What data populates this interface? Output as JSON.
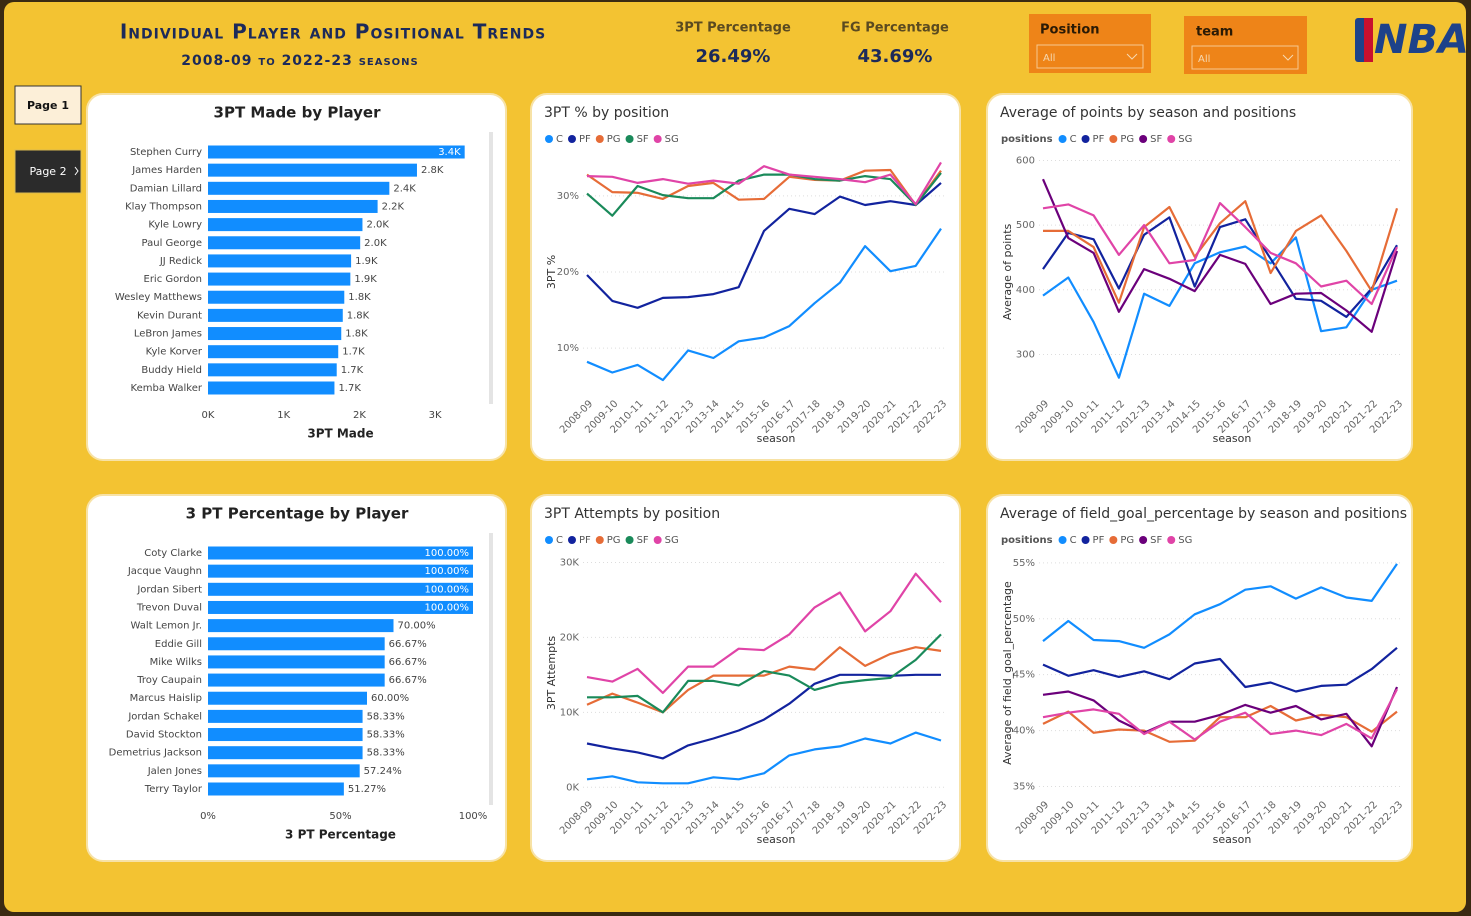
{
  "header": {
    "title": "Individual Player and Positional Trends",
    "subtitle": "2008-09 to 2022-23 seasons",
    "logo": "NBA"
  },
  "kpis": [
    {
      "label": "3PT Percentage",
      "value": "26.49%"
    },
    {
      "label": "FG Percentage",
      "value": "43.69%"
    }
  ],
  "slicers": [
    {
      "label": "Position",
      "value": "All"
    },
    {
      "label": "team",
      "value": "All"
    }
  ],
  "nav": [
    "Page 1",
    "Page 2"
  ],
  "chart_data": [
    {
      "type": "hbar",
      "title": "3PT Made by Player",
      "xlabel": "3PT Made",
      "categories": [
        "Stephen Curry",
        "James Harden",
        "Damian Lillard",
        "Klay Thompson",
        "Kyle Lowry",
        "Paul George",
        "JJ Redick",
        "Eric Gordon",
        "Wesley Matthews",
        "Kevin Durant",
        "LeBron James",
        "Kyle Korver",
        "Buddy Hield",
        "Kemba Walker"
      ],
      "values": [
        3390,
        2760,
        2395,
        2240,
        2040,
        2010,
        1890,
        1880,
        1800,
        1780,
        1760,
        1720,
        1700,
        1670
      ],
      "value_labels": [
        "3.4K",
        "2.8K",
        "2.4K",
        "2.2K",
        "2.0K",
        "2.0K",
        "1.9K",
        "1.9K",
        "1.8K",
        "1.8K",
        "1.8K",
        "1.7K",
        "1.7K",
        "1.7K"
      ],
      "color": "#118dff",
      "xlim": [
        0,
        3500
      ],
      "xticks": [
        {
          "value": 0,
          "label": "0K"
        },
        {
          "value": 1000,
          "label": "1K"
        },
        {
          "value": 2000,
          "label": "2K"
        },
        {
          "value": 3000,
          "label": "3K"
        }
      ]
    },
    {
      "type": "line",
      "title": "3PT % by position",
      "xlabel": "season",
      "ylabel": "3PT %",
      "categories": [
        "2008-09",
        "2009-10",
        "2010-11",
        "2011-12",
        "2012-13",
        "2013-14",
        "2014-15",
        "2015-16",
        "2016-17",
        "2017-18",
        "2018-19",
        "2019-20",
        "2020-21",
        "2021-22",
        "2022-23"
      ],
      "series": [
        {
          "name": "C",
          "color": "#118dff",
          "values": [
            8.2,
            6.8,
            7.8,
            5.8,
            9.7,
            8.7,
            10.9,
            11.4,
            12.9,
            15.9,
            18.6,
            23.4,
            20.1,
            20.8,
            25.7
          ]
        },
        {
          "name": "PF",
          "color": "#12239e",
          "values": [
            19.6,
            16.2,
            15.3,
            16.6,
            16.7,
            17.1,
            18.0,
            25.4,
            28.3,
            27.6,
            29.9,
            28.8,
            29.3,
            28.8,
            31.7
          ]
        },
        {
          "name": "PG",
          "color": "#e66c37",
          "values": [
            32.8,
            30.5,
            30.4,
            29.6,
            31.3,
            31.7,
            29.5,
            29.6,
            32.5,
            32.1,
            32.0,
            33.3,
            33.4,
            28.8,
            33.3
          ]
        },
        {
          "name": "SF",
          "color": "#1a8a5a",
          "values": [
            30.3,
            27.4,
            31.3,
            30.1,
            29.7,
            29.7,
            32.0,
            32.8,
            32.8,
            32.2,
            32.0,
            32.6,
            32.2,
            28.8,
            33.0
          ]
        },
        {
          "name": "SG",
          "color": "#e044a7",
          "values": [
            32.6,
            32.5,
            31.7,
            32.2,
            31.6,
            32.0,
            31.6,
            33.9,
            32.8,
            32.5,
            32.2,
            31.8,
            32.8,
            28.9,
            34.4
          ]
        }
      ],
      "ylim": [
        4.5,
        35.5
      ],
      "yticks": [
        {
          "value": 10,
          "label": "10%"
        },
        {
          "value": 20,
          "label": "20%"
        },
        {
          "value": 30,
          "label": "30%"
        }
      ],
      "grid": true
    },
    {
      "type": "line",
      "title": "Average of points by season and positions",
      "xlabel": "season",
      "ylabel": "Average of points",
      "legend_title": "positions",
      "categories": [
        "2008-09",
        "2009-10",
        "2010-11",
        "2011-12",
        "2012-13",
        "2013-14",
        "2014-15",
        "2015-16",
        "2016-17",
        "2017-18",
        "2018-19",
        "2019-20",
        "2020-21",
        "2021-22",
        "2022-23"
      ],
      "series": [
        {
          "name": "C",
          "color": "#118dff",
          "values": [
            391,
            419,
            350,
            264,
            394,
            375,
            441,
            458,
            467,
            441,
            481,
            336,
            342,
            400,
            414
          ]
        },
        {
          "name": "PF",
          "color": "#12239e",
          "values": [
            432,
            488,
            478,
            402,
            485,
            512,
            405,
            497,
            509,
            448,
            386,
            383,
            358,
            402,
            469
          ]
        },
        {
          "name": "PG",
          "color": "#e66c37",
          "values": [
            491,
            491,
            466,
            380,
            497,
            528,
            451,
            503,
            537,
            426,
            491,
            515,
            460,
            398,
            526
          ]
        },
        {
          "name": "SF",
          "color": "#6b007b",
          "values": [
            571,
            480,
            457,
            366,
            432,
            417,
            398,
            454,
            440,
            378,
            394,
            395,
            368,
            335,
            460
          ]
        },
        {
          "name": "SG",
          "color": "#e044a7",
          "values": [
            526,
            532,
            515,
            454,
            500,
            441,
            446,
            534,
            497,
            457,
            441,
            405,
            414,
            378,
            466
          ]
        }
      ],
      "ylim": [
        245,
        610
      ],
      "yticks": [
        300,
        400,
        500,
        600
      ],
      "grid": true
    },
    {
      "type": "hbar",
      "title": "3 PT Percentage by Player",
      "xlabel": "3 PT Percentage",
      "categories": [
        "Coty Clarke",
        "Jacque Vaughn",
        "Jordan Sibert",
        "Trevon Duval",
        "Walt Lemon Jr.",
        "Eddie Gill",
        "Mike Wilks",
        "Troy Caupain",
        "Marcus Haislip",
        "Jordan Schakel",
        "David Stockton",
        "Demetrius Jackson",
        "Jalen Jones",
        "Terry Taylor"
      ],
      "values": [
        100,
        100,
        100,
        100,
        70,
        66.67,
        66.67,
        66.67,
        60,
        58.33,
        58.33,
        58.33,
        57.24,
        51.27
      ],
      "value_labels": [
        "100.00%",
        "100.00%",
        "100.00%",
        "100.00%",
        "70.00%",
        "66.67%",
        "66.67%",
        "66.67%",
        "60.00%",
        "58.33%",
        "58.33%",
        "58.33%",
        "57.24%",
        "51.27%"
      ],
      "color": "#118dff",
      "xlim": [
        0,
        100
      ],
      "xticks": [
        {
          "value": 0,
          "label": "0%"
        },
        {
          "value": 50,
          "label": "50%"
        },
        {
          "value": 100,
          "label": "100%"
        }
      ]
    },
    {
      "type": "line",
      "title": "3PT Attempts by position",
      "xlabel": "season",
      "ylabel": "3PT Attempts",
      "categories": [
        "2008-09",
        "2009-10",
        "2010-11",
        "2011-12",
        "2012-13",
        "2013-14",
        "2014-15",
        "2015-16",
        "2016-17",
        "2017-18",
        "2018-19",
        "2019-20",
        "2020-21",
        "2021-22",
        "2022-23"
      ],
      "series": [
        {
          "name": "C",
          "color": "#118dff",
          "values": [
            1060,
            1460,
            660,
            530,
            530,
            1330,
            1060,
            1860,
            4250,
            5050,
            5450,
            6510,
            5840,
            7300,
            6240
          ]
        },
        {
          "name": "PF",
          "color": "#12239e",
          "values": [
            5840,
            5180,
            4650,
            3850,
            5580,
            6510,
            7570,
            9030,
            11150,
            13810,
            15010,
            15010,
            14870,
            15010,
            15010
          ]
        },
        {
          "name": "PG",
          "color": "#e66c37",
          "values": [
            11000,
            12500,
            11300,
            10000,
            13000,
            14900,
            14900,
            14900,
            16100,
            15700,
            18700,
            16200,
            17800,
            18700,
            18200
          ]
        },
        {
          "name": "SF",
          "color": "#1a8a5a",
          "values": [
            12000,
            12000,
            12200,
            10000,
            14200,
            14200,
            13600,
            15500,
            14900,
            13000,
            13900,
            14300,
            14600,
            17000,
            20400
          ]
        },
        {
          "name": "SG",
          "color": "#e044a7",
          "values": [
            14700,
            14100,
            15800,
            12600,
            16100,
            16100,
            18500,
            18300,
            20400,
            24000,
            26000,
            20800,
            23500,
            28500,
            24700
          ]
        }
      ],
      "ylim": [
        -500,
        31000
      ],
      "yticks": [
        {
          "value": 0,
          "label": "0K"
        },
        {
          "value": 10000,
          "label": "10K"
        },
        {
          "value": 20000,
          "label": "20K"
        },
        {
          "value": 30000,
          "label": "30K"
        }
      ],
      "grid": true
    },
    {
      "type": "line",
      "title": "Average of field_goal_percentage by season and positions",
      "xlabel": "season",
      "ylabel": "Average of field_goal_percentage",
      "legend_title": "positions",
      "categories": [
        "2008-09",
        "2009-10",
        "2010-11",
        "2011-12",
        "2012-13",
        "2013-14",
        "2014-15",
        "2015-16",
        "2016-17",
        "2017-18",
        "2018-19",
        "2019-20",
        "2020-21",
        "2021-22",
        "2022-23"
      ],
      "series": [
        {
          "name": "C",
          "color": "#118dff",
          "values": [
            48.0,
            49.8,
            48.1,
            48.0,
            47.4,
            48.6,
            50.4,
            51.3,
            52.6,
            52.9,
            51.8,
            52.8,
            51.9,
            51.6,
            54.9
          ]
        },
        {
          "name": "PF",
          "color": "#12239e",
          "values": [
            45.9,
            44.9,
            45.4,
            44.8,
            45.3,
            44.6,
            46.0,
            46.4,
            43.9,
            44.3,
            43.5,
            44.0,
            44.1,
            45.5,
            47.4
          ]
        },
        {
          "name": "PG",
          "color": "#e66c37",
          "values": [
            40.6,
            41.7,
            39.8,
            40.1,
            40.0,
            39.0,
            39.1,
            41.2,
            41.2,
            42.2,
            40.9,
            41.4,
            41.2,
            39.9,
            41.7
          ]
        },
        {
          "name": "SF",
          "color": "#6b007b",
          "values": [
            43.2,
            43.5,
            42.7,
            40.9,
            39.8,
            40.8,
            40.8,
            41.4,
            42.3,
            41.6,
            42.2,
            41.0,
            41.5,
            38.6,
            43.9
          ]
        },
        {
          "name": "SG",
          "color": "#e044a7",
          "values": [
            41.2,
            41.6,
            41.9,
            41.5,
            39.7,
            40.8,
            39.2,
            40.8,
            41.6,
            39.7,
            40.0,
            39.6,
            40.6,
            39.3,
            43.7
          ]
        }
      ],
      "ylim": [
        34.6,
        55.7
      ],
      "yticks": [
        {
          "value": 35,
          "label": "35%"
        },
        {
          "value": 40,
          "label": "40%"
        },
        {
          "value": 45,
          "label": "45%"
        },
        {
          "value": 50,
          "label": "50%"
        },
        {
          "value": 55,
          "label": "55%"
        }
      ],
      "grid": true
    }
  ]
}
